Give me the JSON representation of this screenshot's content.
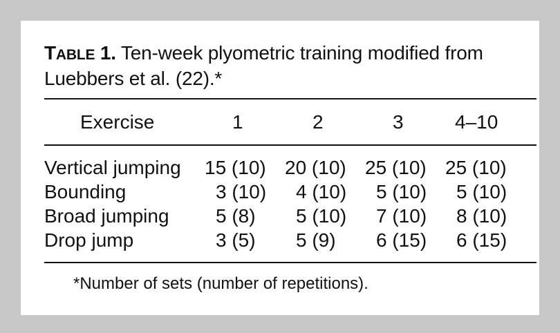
{
  "table": {
    "label_first": "T",
    "label_rest": "ABLE",
    "label_number": "1.",
    "caption": "Ten-week plyometric training modified from Luebbers et al. (22).*",
    "headers": [
      "Exercise",
      "1",
      "2",
      "3",
      "4–10"
    ],
    "rows": [
      {
        "exercise": "Vertical jumping",
        "w1": "15 (10)",
        "w2": "20 (10)",
        "w3": "25 (10)",
        "w4_10": "25 (10)"
      },
      {
        "exercise": "Bounding",
        "w1": "3 (10)",
        "w2": "4 (10)",
        "w3": "5 (10)",
        "w4_10": "5 (10)"
      },
      {
        "exercise": "Broad jumping",
        "w1": "5 (8)",
        "w2": "5 (10)",
        "w3": "7 (10)",
        "w4_10": "8 (10)"
      },
      {
        "exercise": "Drop jump",
        "w1": "3 (5)",
        "w2": "5 (9)",
        "w3": "6 (15)",
        "w4_10": "6 (15)"
      }
    ],
    "footnote": "*Number of sets (number of repetitions)."
  }
}
